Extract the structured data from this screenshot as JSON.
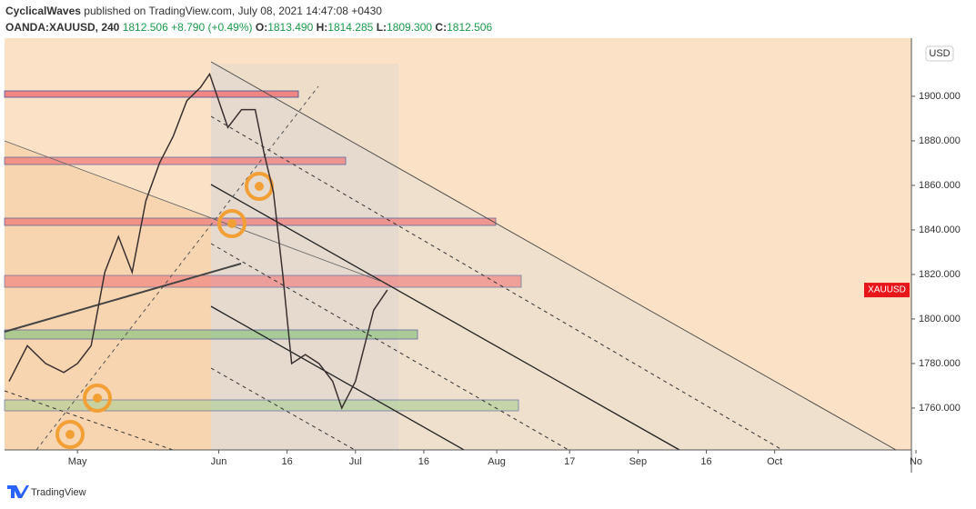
{
  "header": {
    "publisher": "CyclicalWaves",
    "published": "published on TradingView.com, July 08, 2021 14:47:08 +0430",
    "symbol": "OANDA:XAUUSD, 240",
    "last": "1812.506",
    "change": "+8.790 (+0.49%)",
    "open_label": "O:",
    "open": "1813.490",
    "high_label": "H:",
    "high": "1814.285",
    "low_label": "L:",
    "low": "1809.300",
    "close_label": "C:",
    "close": "1812.506"
  },
  "footer": {
    "brand": "TradingView"
  },
  "chart_data": {
    "type": "line",
    "y_unit": "USD",
    "x": [
      106,
      110,
      114,
      118,
      121,
      124,
      127,
      130,
      133,
      136,
      139,
      142,
      145,
      148,
      150,
      152,
      154,
      157,
      160,
      162,
      164,
      166,
      168,
      171,
      174,
      177,
      179,
      182,
      184,
      186,
      189
    ],
    "series": [
      {
        "name": "XAUUSD",
        "color": "#3a3030",
        "values": [
          1772,
          1788,
          1780,
          1776,
          1780,
          1788,
          1821,
          1837,
          1821,
          1853,
          1870,
          1882,
          1898,
          1904,
          1910,
          1898,
          1886,
          1894,
          1894,
          1874,
          1857,
          1821,
          1780,
          1784,
          1780,
          1772,
          1760,
          1772,
          1788,
          1804,
          1813
        ]
      }
    ],
    "xlim": [
      105,
      304
    ],
    "xticks": [
      {
        "value": 121,
        "label": "May"
      },
      {
        "value": 152,
        "label": "Jun"
      },
      {
        "value": 167,
        "label": "16"
      },
      {
        "value": 182,
        "label": "Jul"
      },
      {
        "value": 197,
        "label": "16"
      },
      {
        "value": 213,
        "label": "Aug"
      },
      {
        "value": 229,
        "label": "17"
      },
      {
        "value": 244,
        "label": "Sep"
      },
      {
        "value": 259,
        "label": "16"
      },
      {
        "value": 274,
        "label": "Oct"
      },
      {
        "value": 305,
        "label": "No"
      }
    ],
    "ylim": [
      1741.2,
      1926.1
    ],
    "yticks": [
      {
        "value": 1760,
        "label": "1760.000"
      },
      {
        "value": 1780,
        "label": "1780.000"
      },
      {
        "value": 1800,
        "label": "1800.000"
      },
      {
        "value": 1820,
        "label": "1820.000"
      },
      {
        "value": 1840,
        "label": "1840.000"
      },
      {
        "value": 1860,
        "label": "1860.000"
      },
      {
        "value": 1880,
        "label": "1880.000"
      },
      {
        "value": 1900,
        "label": "1900.000"
      }
    ],
    "tag_color": "#e8151b"
  }
}
